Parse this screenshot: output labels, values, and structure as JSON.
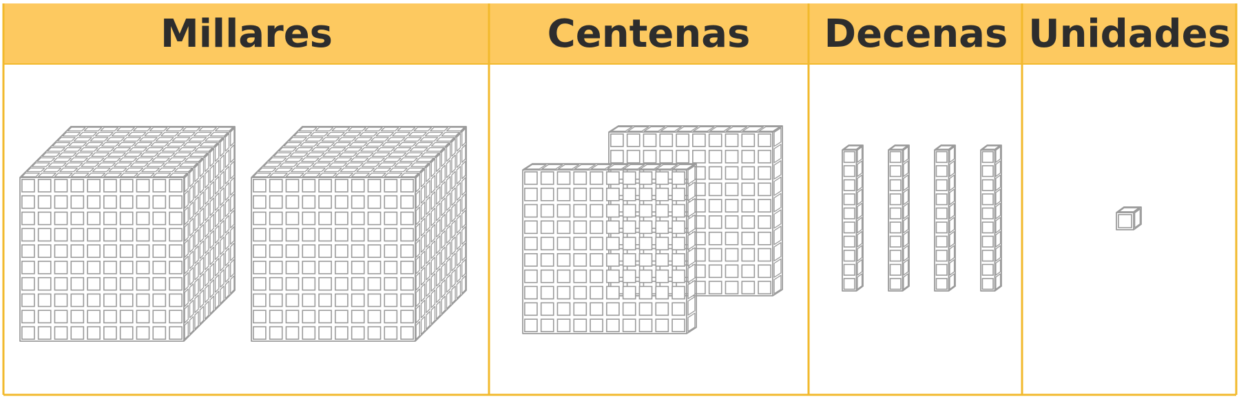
{
  "header_color": "#FDC960",
  "border_color": "#F2B92C",
  "block_stroke": "#9a9a9a",
  "columns": [
    {
      "key": "millares",
      "label": "Millares",
      "blocks": 2,
      "block_type": "thousand-cube"
    },
    {
      "key": "centenas",
      "label": "Centenas",
      "blocks": 2,
      "block_type": "hundred-flat"
    },
    {
      "key": "decenas",
      "label": "Decenas",
      "blocks": 4,
      "block_type": "ten-rod"
    },
    {
      "key": "unidades",
      "label": "Unidades",
      "blocks": 1,
      "block_type": "unit-cube"
    }
  ]
}
